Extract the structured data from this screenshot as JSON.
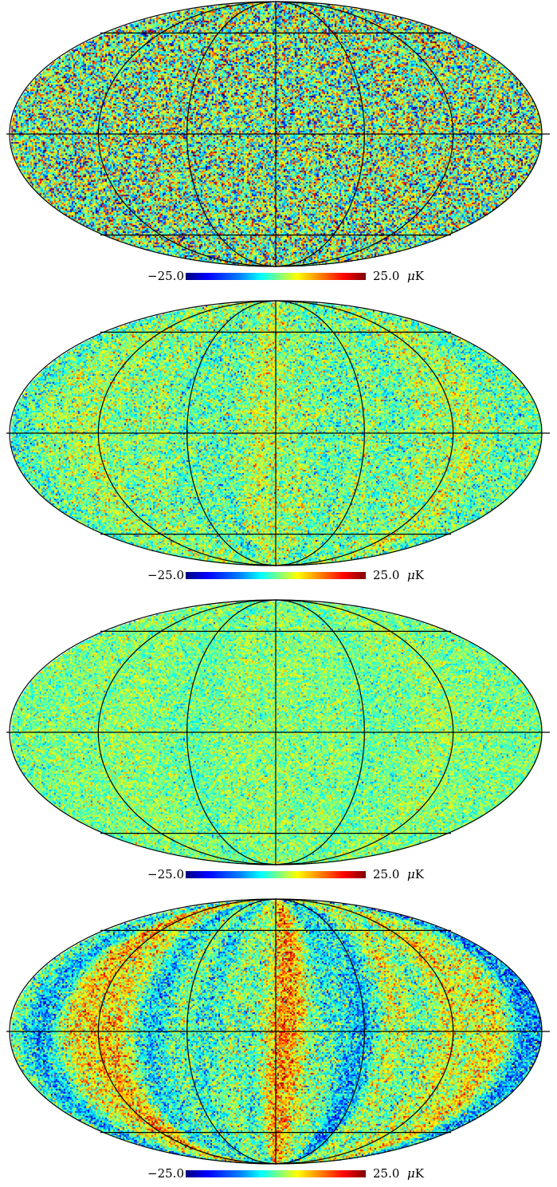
{
  "maps": [
    {
      "id": "map-1",
      "pattern": "noise-strong",
      "colorbar": {
        "min_label": "−25.0",
        "max_label": "25.0",
        "unit_prefix": "μ",
        "unit": "K"
      }
    },
    {
      "id": "map-2",
      "pattern": "noise-stripes-faint",
      "colorbar": {
        "min_label": "−25.0",
        "max_label": "25.0",
        "unit_prefix": "μ",
        "unit": "K"
      }
    },
    {
      "id": "map-3",
      "pattern": "noise-faint",
      "colorbar": {
        "min_label": "−25.0",
        "max_label": "25.0",
        "unit_prefix": "μ",
        "unit": "K"
      }
    },
    {
      "id": "map-4",
      "pattern": "noise-stripes-strong",
      "colorbar": {
        "min_label": "−25.0",
        "max_label": "25.0",
        "unit_prefix": "μ",
        "unit": "K"
      }
    }
  ],
  "colorscale": {
    "min": -25.0,
    "max": 25.0,
    "colors": [
      "#00007f",
      "#0000ff",
      "#007fff",
      "#00ffff",
      "#7fff7f",
      "#ffff00",
      "#ff7f00",
      "#ff0000",
      "#7f0000"
    ]
  },
  "projection": "mollweide",
  "graticule": true
}
